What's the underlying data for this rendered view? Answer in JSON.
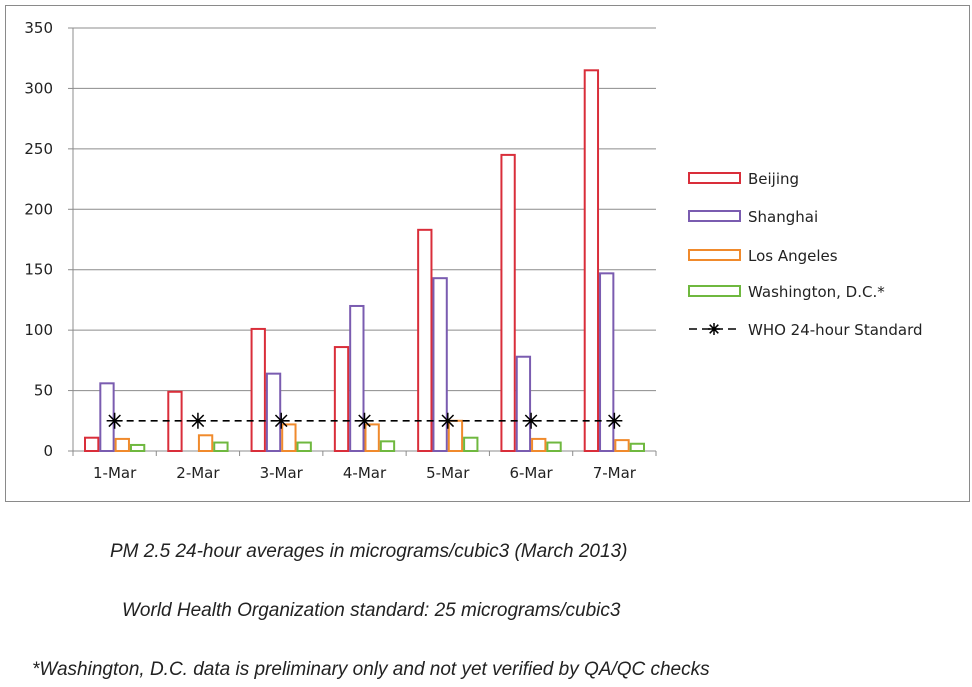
{
  "chart_data": {
    "type": "bar",
    "categories": [
      "1-Mar",
      "2-Mar",
      "3-Mar",
      "4-Mar",
      "5-Mar",
      "6-Mar",
      "7-Mar"
    ],
    "series": [
      {
        "name": "Beijing",
        "color": "#d92e3a",
        "values": [
          11,
          49,
          101,
          86,
          183,
          245,
          315
        ]
      },
      {
        "name": "Shanghai",
        "color": "#7a5cb0",
        "values": [
          56,
          0,
          64,
          120,
          143,
          78,
          147
        ]
      },
      {
        "name": "Los Angeles",
        "color": "#f08a2c",
        "values": [
          10,
          13,
          22,
          22,
          25,
          10,
          9
        ]
      },
      {
        "name": "Washington, D.C.*",
        "color": "#6fb83f",
        "values": [
          5,
          7,
          7,
          8,
          11,
          7,
          6
        ]
      }
    ],
    "reference_line": {
      "name": "WHO 24-hour Standard",
      "value": 25,
      "color": "#000000"
    },
    "ylim": [
      0,
      350
    ],
    "yticks": [
      "0",
      "50",
      "100",
      "150",
      "200",
      "250",
      "300",
      "350"
    ],
    "grid": true,
    "legend_position": "right"
  },
  "captions": {
    "line1": "PM 2.5 24-hour averages in micrograms/cubic3 (March 2013)",
    "line2": "World Health Organization standard: 25 micrograms/cubic3",
    "line3": "*Washington, D.C. data is preliminary only and not yet verified by QA/QC checks"
  }
}
